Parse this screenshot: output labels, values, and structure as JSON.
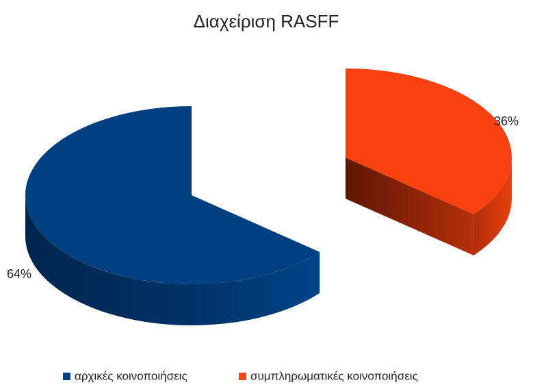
{
  "chart_data": {
    "type": "pie",
    "title": "Διαχείριση RASFF",
    "categories": [
      "αρχικές κοινοποιήσεις",
      "συμπληρωματικές κοινοποιήσεις"
    ],
    "values": [
      64,
      36
    ],
    "value_labels": [
      "64%",
      "36%"
    ],
    "colors": [
      "#004080",
      "#f8410e"
    ],
    "legend": "bottom"
  }
}
